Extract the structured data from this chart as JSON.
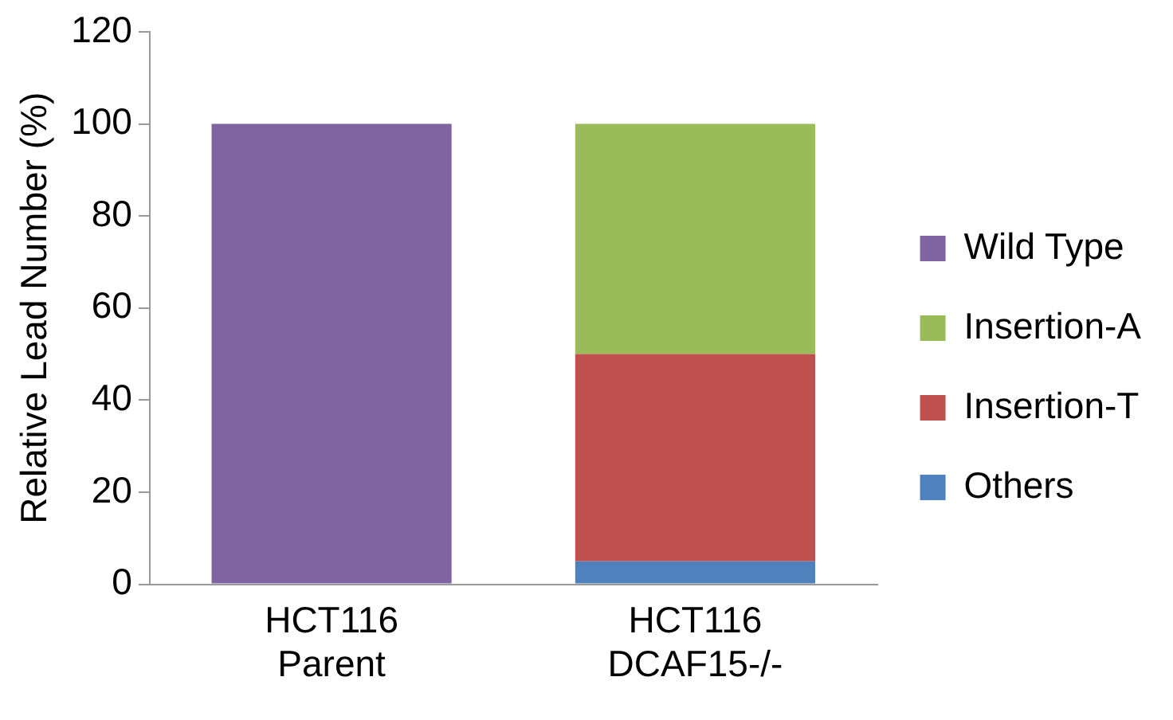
{
  "chart_data": {
    "type": "bar",
    "stacked": true,
    "ylabel": "Relative Lead Number (%)",
    "categories": [
      "HCT116\nParent",
      "HCT116\nDCAF15-/-"
    ],
    "series": [
      {
        "name": "Others",
        "color": "#4f81bd",
        "values": [
          null,
          5
        ]
      },
      {
        "name": "Insertion-T",
        "color": "#c0504d",
        "values": [
          null,
          45
        ]
      },
      {
        "name": "Insertion-A",
        "color": "#9bbb59",
        "values": [
          null,
          50
        ]
      },
      {
        "name": "Wild Type",
        "color": "#8064a2",
        "values": [
          100,
          null
        ]
      }
    ],
    "ylim": [
      0,
      120
    ],
    "yticks": [
      0,
      20,
      40,
      60,
      80,
      100,
      120
    ],
    "grid": false,
    "legend": "right"
  }
}
